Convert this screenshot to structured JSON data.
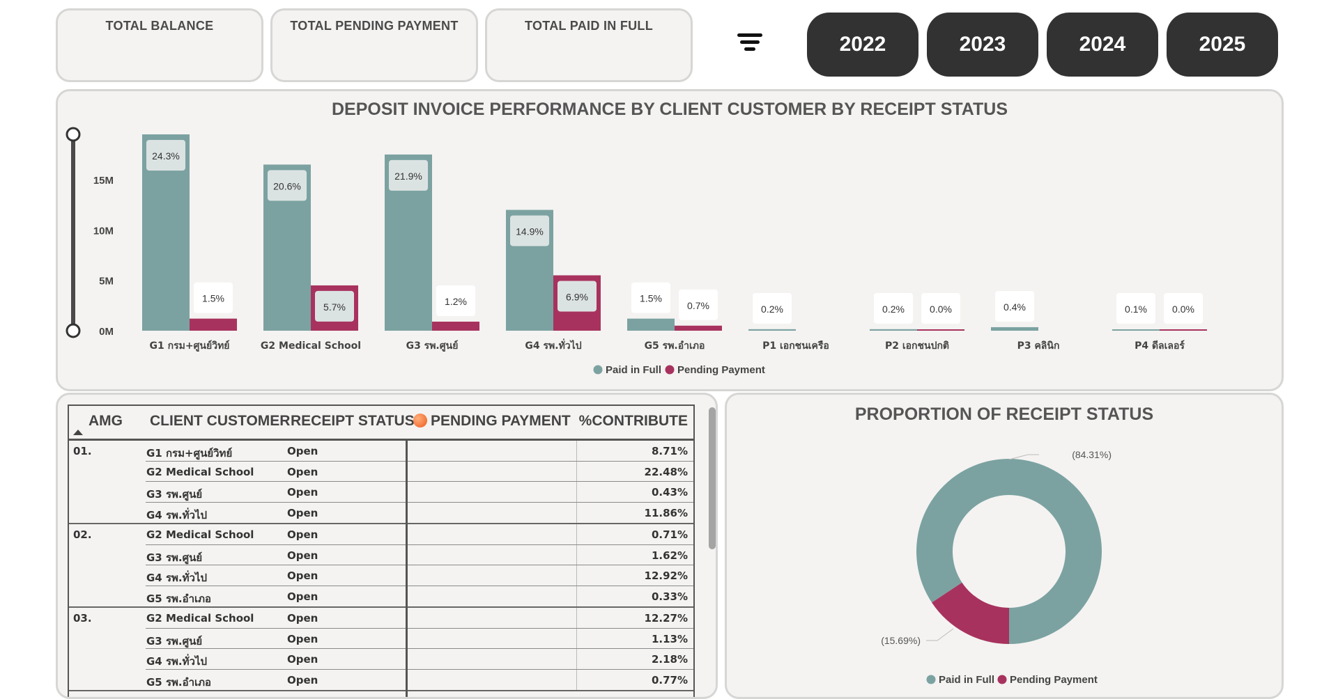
{
  "kpis": [
    {
      "title": "TOTAL BALANCE"
    },
    {
      "title": "TOTAL PENDING PAYMENT"
    },
    {
      "title": "TOTAL PAID IN FULL"
    }
  ],
  "year_buttons": [
    "2022",
    "2023",
    "2024",
    "2025"
  ],
  "colors": {
    "paid": "#7ba2a1",
    "pending": "#a8325e",
    "card": "#f4f3f1",
    "button": "#323232"
  },
  "chart_data": [
    {
      "type": "bar",
      "title": "DEPOSIT INVOICE PERFORMANCE BY CLIENT CUSTOMER BY RECEIPT STATUS",
      "categories": [
        "G1 กรม+ศูนย์วิทย์",
        "G2 Medical School",
        "G3 รพ.ศูนย์",
        "G4 รพ.ทั่วไป",
        "G5 รพ.อำเภอ",
        "P1 เอกชนเครือ",
        "P2 เอกชนปกติ",
        "P3 คลินิก",
        "P4 ดีลเลอร์"
      ],
      "series": [
        {
          "name": "Paid in Full",
          "values": [
            19.5,
            16.5,
            17.5,
            12.0,
            1.2,
            0.15,
            0.15,
            0.35,
            0.1
          ],
          "labels": [
            "24.3%",
            "20.6%",
            "21.9%",
            "14.9%",
            "1.5%",
            "0.2%",
            "0.2%",
            "0.4%",
            "0.1%"
          ]
        },
        {
          "name": "Pending Payment",
          "values": [
            1.2,
            4.5,
            0.9,
            5.5,
            0.5,
            null,
            0.02,
            null,
            0.02
          ],
          "labels": [
            "1.5%",
            "5.7%",
            "1.2%",
            "6.9%",
            "0.7%",
            null,
            "0.0%",
            null,
            "0.0%"
          ]
        }
      ],
      "yticks": [
        "0M",
        "5M",
        "10M",
        "15M"
      ],
      "ytick_values": [
        0,
        5,
        10,
        15
      ],
      "ylim": [
        0,
        19.5
      ],
      "legend": "bottom-center"
    },
    {
      "type": "pie",
      "title": "PROPORTION OF RECEIPT STATUS",
      "slices": [
        {
          "name": "Paid in Full",
          "value": 84.31,
          "label": "(84.31%)"
        },
        {
          "name": "Pending Payment",
          "value": 15.69,
          "label": "(15.69%)"
        }
      ],
      "legend": "bottom-center"
    }
  ],
  "table": {
    "headers": {
      "amg": "AMG",
      "client": "CLIENT CUSTOMER",
      "status": "RECEIPT STATUS",
      "pending": "PENDING PAYMENT",
      "pct": "%CONTRIBUTE"
    },
    "groups": [
      {
        "amg": "01.",
        "rows": [
          {
            "client": "G1 กรม+ศูนย์วิทย์",
            "status": "Open",
            "pct": "8.71%"
          },
          {
            "client": "G2 Medical School",
            "status": "Open",
            "pct": "22.48%"
          },
          {
            "client": "G3 รพ.ศูนย์",
            "status": "Open",
            "pct": "0.43%"
          },
          {
            "client": "G4 รพ.ทั่วไป",
            "status": "Open",
            "pct": "11.86%"
          }
        ]
      },
      {
        "amg": "02.",
        "rows": [
          {
            "client": "G2 Medical School",
            "status": "Open",
            "pct": "0.71%"
          },
          {
            "client": "G3 รพ.ศูนย์",
            "status": "Open",
            "pct": "1.62%"
          },
          {
            "client": "G4 รพ.ทั่วไป",
            "status": "Open",
            "pct": "12.92%"
          },
          {
            "client": "G5 รพ.อำเภอ",
            "status": "Open",
            "pct": "0.33%"
          }
        ]
      },
      {
        "amg": "03.",
        "rows": [
          {
            "client": "G2 Medical School",
            "status": "Open",
            "pct": "12.27%"
          },
          {
            "client": "G3 รพ.ศูนย์",
            "status": "Open",
            "pct": "1.13%"
          },
          {
            "client": "G4 รพ.ทั่วไป",
            "status": "Open",
            "pct": "2.18%"
          },
          {
            "client": "G5 รพ.อำเภอ",
            "status": "Open",
            "pct": "0.77%"
          }
        ]
      }
    ]
  }
}
